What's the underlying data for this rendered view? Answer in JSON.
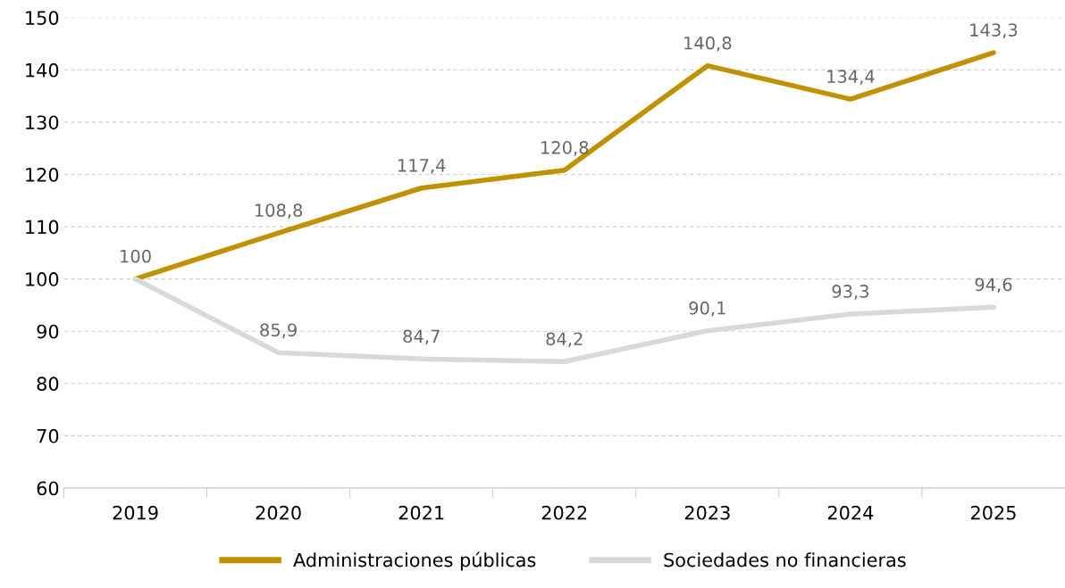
{
  "chart_data": {
    "type": "line",
    "categories": [
      "2019",
      "2020",
      "2021",
      "2022",
      "2023",
      "2024",
      "2025"
    ],
    "series": [
      {
        "name": "Administraciones públicas",
        "color": "#c09100",
        "values": [
          100,
          108.8,
          117.4,
          120.8,
          140.8,
          134.4,
          143.3
        ],
        "value_labels": [
          "100",
          "108,8",
          "117,4",
          "120,8",
          "140,8",
          "134,4",
          "143,3"
        ]
      },
      {
        "name": "Sociedades no financieras",
        "color": "#d9d9d9",
        "values": [
          100,
          85.9,
          84.7,
          84.2,
          90.1,
          93.3,
          94.6
        ],
        "value_labels": [
          null,
          "85,9",
          "84,7",
          "84,2",
          "90,1",
          "93,3",
          "94,6"
        ]
      }
    ],
    "ylim": [
      60,
      150
    ],
    "yticks": [
      60,
      70,
      80,
      90,
      100,
      110,
      120,
      130,
      140,
      150
    ],
    "grid": "y",
    "legend": "bottom",
    "marker": "none",
    "line_style": "solid"
  }
}
